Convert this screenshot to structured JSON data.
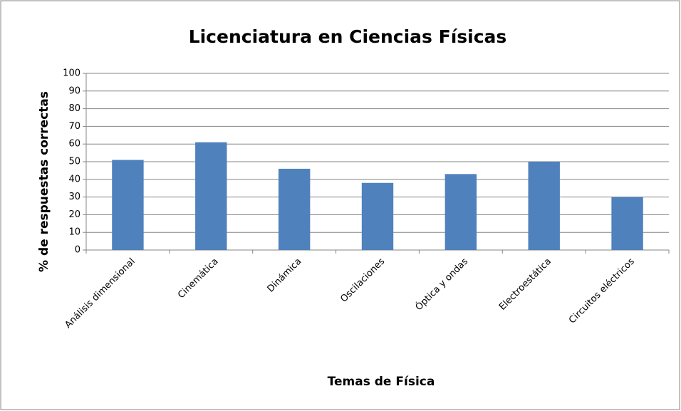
{
  "chart_data": {
    "type": "bar",
    "title": "Licenciatura en Ciencias Físicas",
    "x_label": "Temas de Física",
    "y_label": "% de respuestas correctas",
    "categories": [
      "Análisis dimensional",
      "Cinemática",
      "Dinámica",
      "Oscilaciones",
      "Óptica y ondas",
      "Electroestática",
      "Circuitos eléctricos"
    ],
    "values": [
      51,
      61,
      46,
      38,
      43,
      50,
      30
    ],
    "color": "#4f81bd",
    "ylim": [
      0,
      100
    ],
    "yticks": [
      0,
      10,
      20,
      30,
      40,
      50,
      60,
      70,
      80,
      90,
      100
    ],
    "grid": true
  }
}
